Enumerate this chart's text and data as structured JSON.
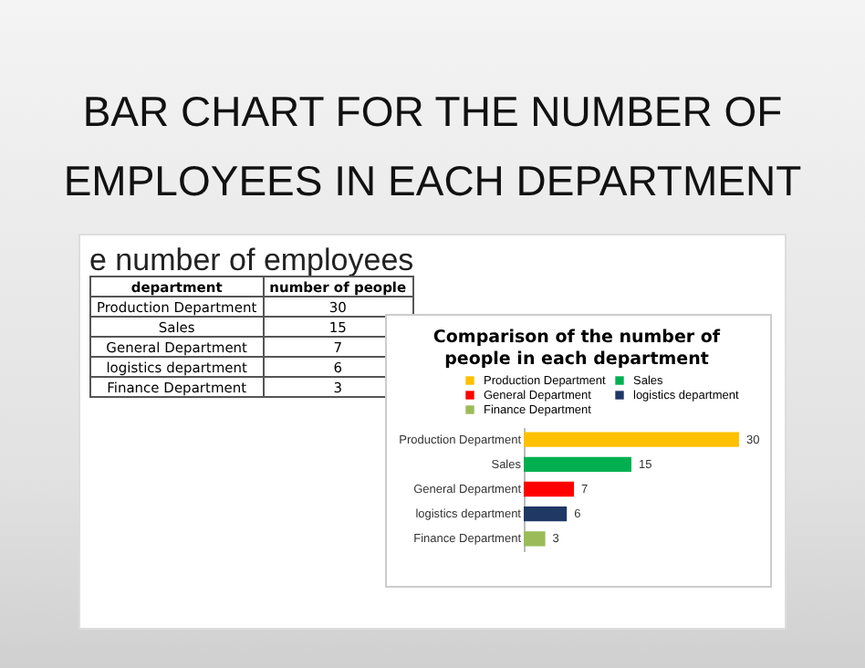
{
  "chart_data": [
    {
      "type": "other",
      "title": "BAR CHART FOR THE NUMBER OF EMPLOYEES IN EACH DEPARTMENT",
      "subtitle": "e number of employees",
      "annotations": [
        "department",
        "number of people",
        "Production Department",
        "30",
        "Sales",
        "15",
        "General Department",
        "7",
        "logistics department",
        "6",
        "Finance Department",
        "3"
      ]
    },
    {
      "type": "bar",
      "orientation": "horizontal",
      "stacked": true,
      "title": "Comparison of the number of people in each department",
      "categories": [
        "Production Department",
        "Sales",
        "General Department",
        "logistics department",
        "Finance Department"
      ],
      "series": [
        {
          "name": "Production Department",
          "color": "#ffc000",
          "values": [
            30,
            null,
            null,
            null,
            null
          ]
        },
        {
          "name": "Sales",
          "color": "#00b050",
          "values": [
            null,
            15,
            null,
            null,
            null
          ]
        },
        {
          "name": "General Department",
          "color": "#ff0000",
          "values": [
            null,
            null,
            7,
            null,
            null
          ]
        },
        {
          "name": "logistics department",
          "color": "#1f3864",
          "values": [
            null,
            null,
            null,
            6,
            null
          ]
        },
        {
          "name": "Finance Department",
          "color": "#9bbb59",
          "values": [
            null,
            null,
            null,
            null,
            3
          ]
        }
      ],
      "data_labels": true,
      "legend": "top"
    }
  ]
}
